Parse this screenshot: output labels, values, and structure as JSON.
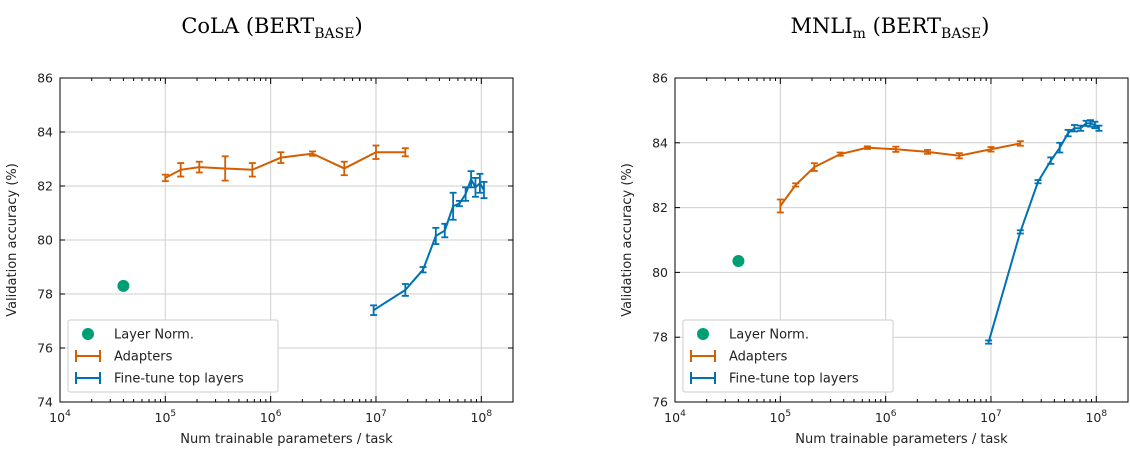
{
  "chart_data": [
    {
      "type": "line",
      "title": {
        "main": "CoLA (BERT",
        "sub": "BASE",
        "close": ")"
      },
      "xlabel": "Num trainable parameters / task",
      "ylabel": "Validation accuracy (%)",
      "xscale": "log",
      "xlim": [
        10000,
        200000000
      ],
      "ylim": [
        74,
        86
      ],
      "xticks": [
        10000,
        100000,
        1000000,
        10000000,
        100000000
      ],
      "xtick_labels": [
        {
          "b": "10",
          "e": "4"
        },
        {
          "b": "10",
          "e": "5"
        },
        {
          "b": "10",
          "e": "6"
        },
        {
          "b": "10",
          "e": "7"
        },
        {
          "b": "10",
          "e": "8"
        }
      ],
      "yticks": [
        74,
        76,
        78,
        80,
        82,
        84,
        86
      ],
      "grid": true,
      "legend_position": "lower-left",
      "series": [
        {
          "name": "Layer Norm.",
          "kind": "point",
          "color": "#009e73",
          "points": [
            {
              "x": 40000,
              "y": 78.3
            }
          ]
        },
        {
          "name": "Adapters",
          "kind": "errorline",
          "color": "#d55e00",
          "points": [
            {
              "x": 100000,
              "y": 82.3,
              "err": 0.12
            },
            {
              "x": 140000,
              "y": 82.6,
              "err": 0.25
            },
            {
              "x": 210000,
              "y": 82.7,
              "err": 0.2
            },
            {
              "x": 370000,
              "y": 82.65,
              "err": 0.45
            },
            {
              "x": 670000,
              "y": 82.6,
              "err": 0.25
            },
            {
              "x": 1250000,
              "y": 83.05,
              "err": 0.2
            },
            {
              "x": 2500000,
              "y": 83.2,
              "err": 0.08
            },
            {
              "x": 5000000,
              "y": 82.65,
              "err": 0.25
            },
            {
              "x": 10000000,
              "y": 83.25,
              "err": 0.25
            },
            {
              "x": 19000000,
              "y": 83.25,
              "err": 0.15
            }
          ]
        },
        {
          "name": "Fine-tune top layers",
          "kind": "errorline",
          "color": "#0072b2",
          "points": [
            {
              "x": 9500000,
              "y": 77.4,
              "err": 0.18
            },
            {
              "x": 19000000,
              "y": 78.15,
              "err": 0.22
            },
            {
              "x": 28000000,
              "y": 78.9,
              "err": 0.1
            },
            {
              "x": 37000000,
              "y": 80.15,
              "err": 0.3
            },
            {
              "x": 45000000,
              "y": 80.35,
              "err": 0.25
            },
            {
              "x": 54000000,
              "y": 81.25,
              "err": 0.5
            },
            {
              "x": 62000000,
              "y": 81.35,
              "err": 0.1
            },
            {
              "x": 71000000,
              "y": 81.7,
              "err": 0.25
            },
            {
              "x": 80000000,
              "y": 82.25,
              "err": 0.3
            },
            {
              "x": 88000000,
              "y": 81.95,
              "err": 0.35
            },
            {
              "x": 97000000,
              "y": 82.1,
              "err": 0.35
            },
            {
              "x": 106000000,
              "y": 81.85,
              "err": 0.3
            }
          ]
        }
      ]
    },
    {
      "type": "line",
      "title": {
        "main": "MNLI",
        "main_sub": "m",
        "mid": " (BERT",
        "sub": "BASE",
        "close": ")"
      },
      "xlabel": "Num trainable parameters / task",
      "ylabel": "Validation accuracy (%)",
      "xscale": "log",
      "xlim": [
        10000,
        200000000
      ],
      "ylim": [
        76,
        86
      ],
      "xticks": [
        10000,
        100000,
        1000000,
        10000000,
        100000000
      ],
      "xtick_labels": [
        {
          "b": "10",
          "e": "4"
        },
        {
          "b": "10",
          "e": "5"
        },
        {
          "b": "10",
          "e": "6"
        },
        {
          "b": "10",
          "e": "7"
        },
        {
          "b": "10",
          "e": "8"
        }
      ],
      "yticks": [
        76,
        78,
        80,
        82,
        84,
        86
      ],
      "grid": true,
      "legend_position": "lower-left",
      "series": [
        {
          "name": "Layer Norm.",
          "kind": "point",
          "color": "#009e73",
          "points": [
            {
              "x": 40000,
              "y": 80.35
            }
          ]
        },
        {
          "name": "Adapters",
          "kind": "errorline",
          "color": "#d55e00",
          "points": [
            {
              "x": 100000,
              "y": 82.05,
              "err": 0.2
            },
            {
              "x": 140000,
              "y": 82.7,
              "err": 0.05
            },
            {
              "x": 210000,
              "y": 83.25,
              "err": 0.12
            },
            {
              "x": 370000,
              "y": 83.65,
              "err": 0.05
            },
            {
              "x": 670000,
              "y": 83.85,
              "err": 0.04
            },
            {
              "x": 1250000,
              "y": 83.8,
              "err": 0.08
            },
            {
              "x": 2500000,
              "y": 83.72,
              "err": 0.06
            },
            {
              "x": 5000000,
              "y": 83.6,
              "err": 0.08
            },
            {
              "x": 10000000,
              "y": 83.8,
              "err": 0.07
            },
            {
              "x": 19000000,
              "y": 83.98,
              "err": 0.07
            }
          ]
        },
        {
          "name": "Fine-tune top layers",
          "kind": "errorline",
          "color": "#0072b2",
          "points": [
            {
              "x": 9500000,
              "y": 77.85,
              "err": 0.05
            },
            {
              "x": 19000000,
              "y": 81.25,
              "err": 0.05
            },
            {
              "x": 28000000,
              "y": 82.8,
              "err": 0.05
            },
            {
              "x": 37000000,
              "y": 83.45,
              "err": 0.1
            },
            {
              "x": 45000000,
              "y": 83.85,
              "err": 0.15
            },
            {
              "x": 54000000,
              "y": 84.3,
              "err": 0.1
            },
            {
              "x": 62000000,
              "y": 84.45,
              "err": 0.1
            },
            {
              "x": 71000000,
              "y": 84.45,
              "err": 0.08
            },
            {
              "x": 80000000,
              "y": 84.6,
              "err": 0.08
            },
            {
              "x": 88000000,
              "y": 84.6,
              "err": 0.1
            },
            {
              "x": 97000000,
              "y": 84.55,
              "err": 0.1
            },
            {
              "x": 106000000,
              "y": 84.45,
              "err": 0.08
            }
          ]
        }
      ]
    }
  ]
}
